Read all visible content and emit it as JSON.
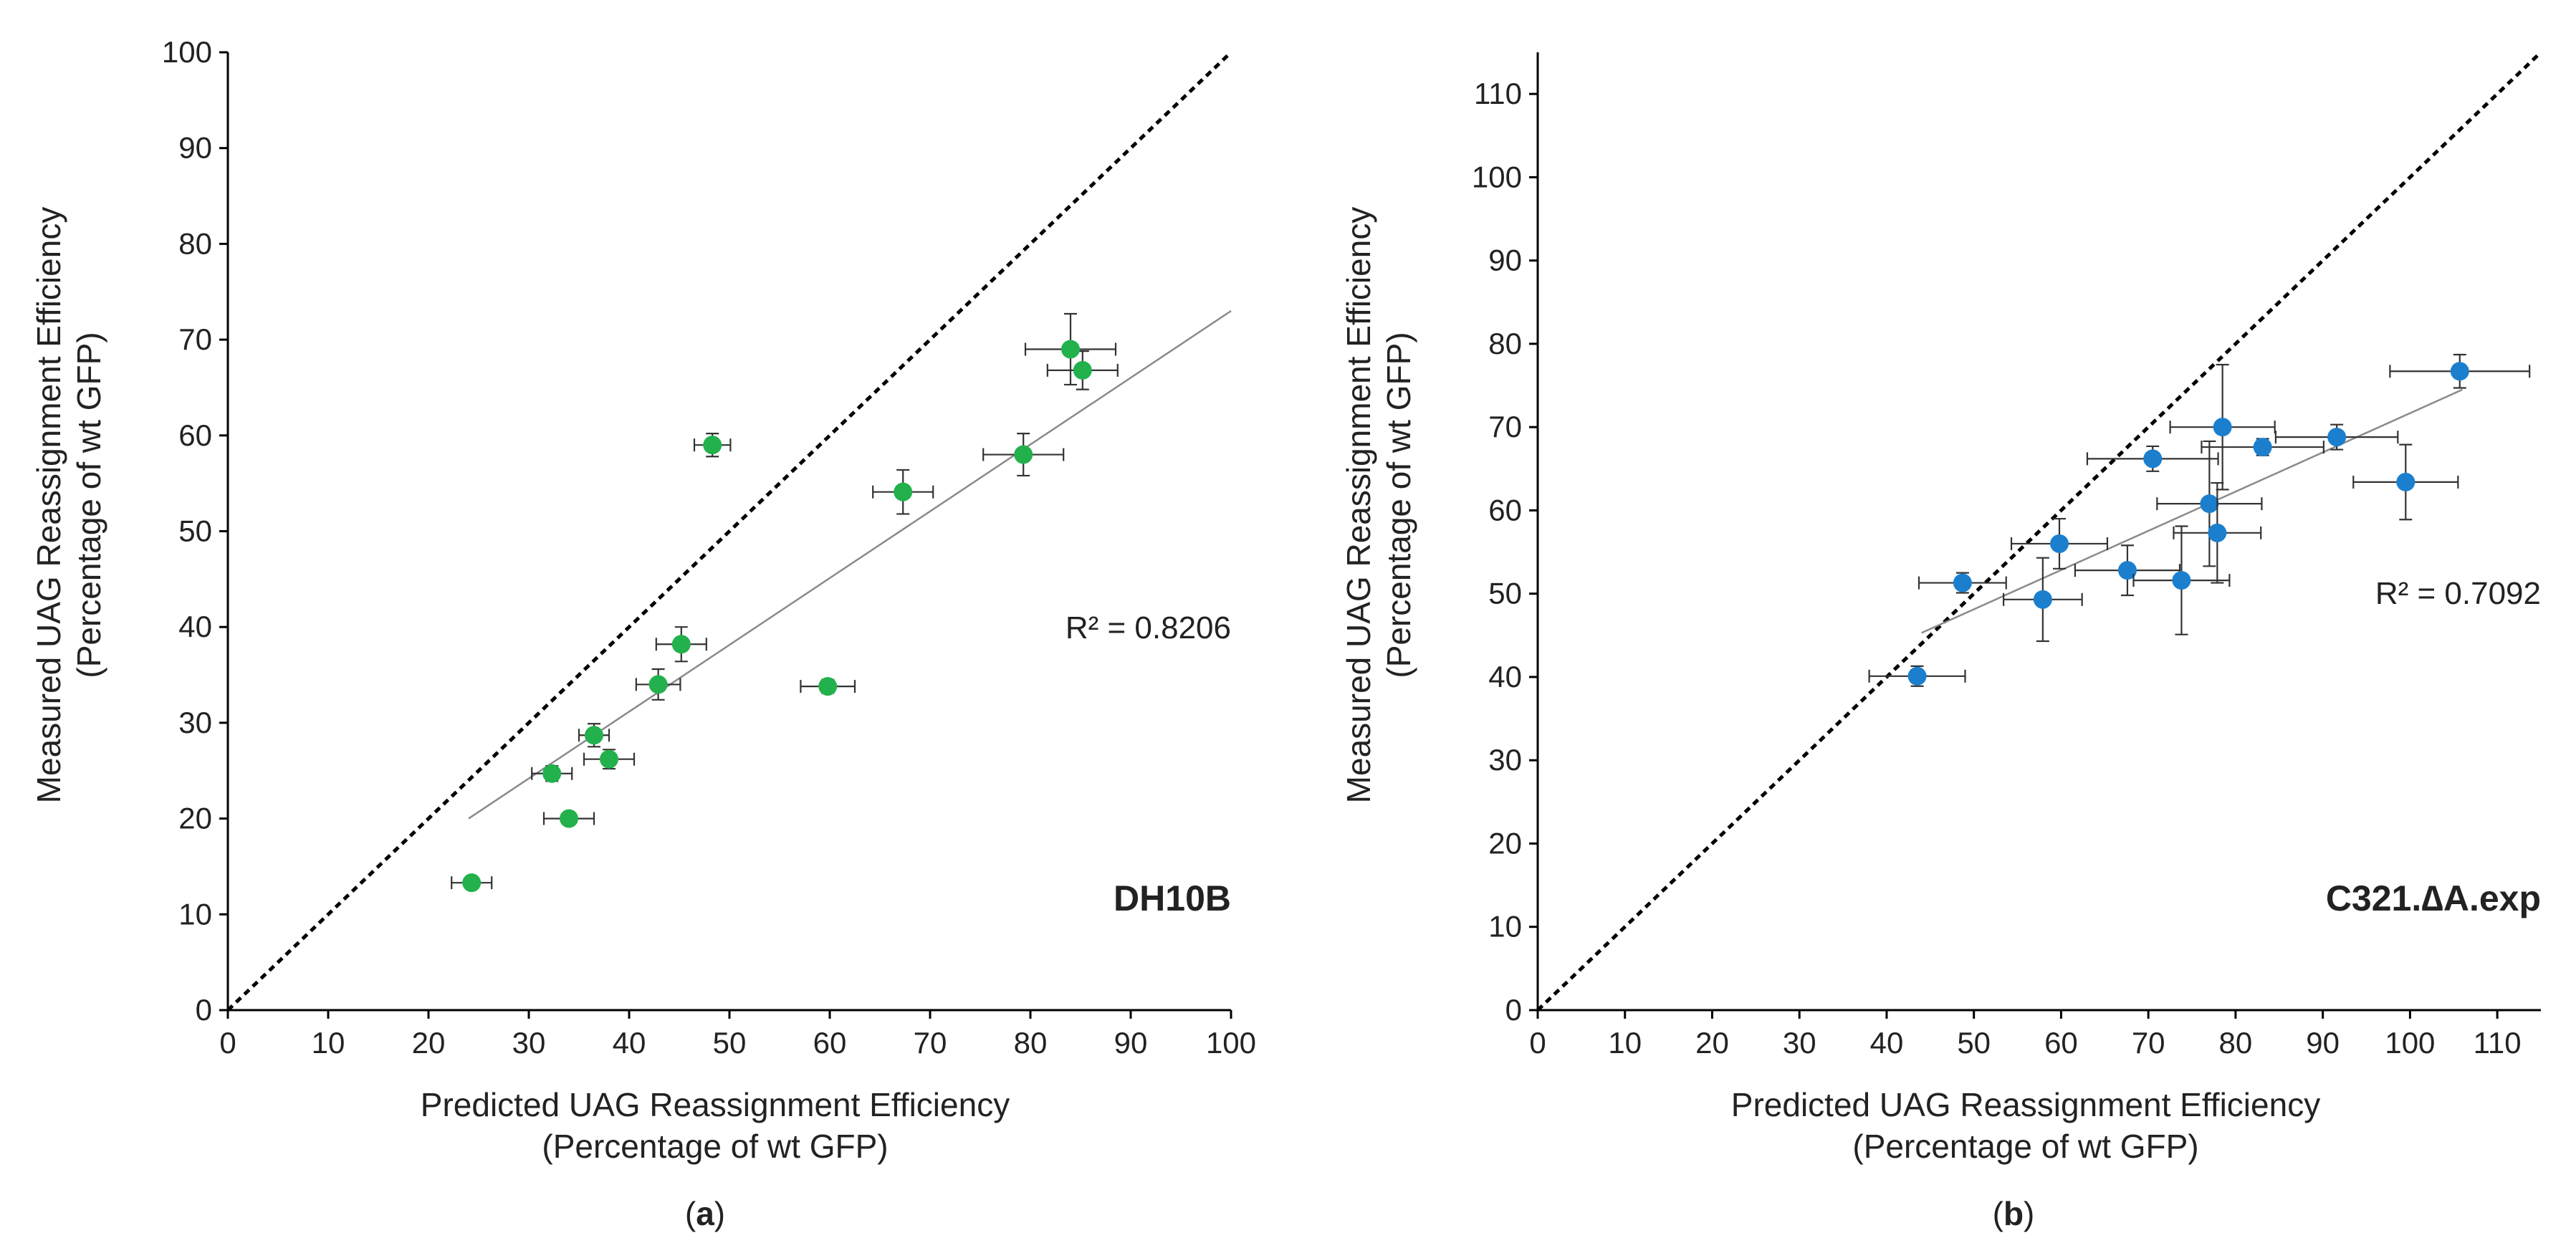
{
  "chart_data": [
    {
      "id": "a",
      "type": "scatter",
      "caption": "a",
      "strain_label": "DH10B",
      "xlabel": "Predicted UAG Reassignment Efficiency",
      "xlabel_sub": "(Percentage of wt GFP)",
      "ylabel": "Measured UAG Reassignment Efficiency",
      "ylabel_sub": "(Percentage of wt GFP)",
      "xlim": [
        0,
        100
      ],
      "ylim": [
        0,
        100
      ],
      "xticks": [
        0,
        10,
        20,
        30,
        40,
        50,
        60,
        70,
        80,
        90,
        100
      ],
      "yticks": [
        0,
        10,
        20,
        30,
        40,
        50,
        60,
        70,
        80,
        90,
        100
      ],
      "marker_color": "#22b14c",
      "r_squared_label": "R² = 0.8206",
      "identity_line": {
        "x": [
          0,
          100
        ],
        "y": [
          0,
          100
        ],
        "style": "dashed"
      },
      "trendline": {
        "x": [
          24,
          100
        ],
        "y": [
          20,
          73
        ]
      },
      "points": [
        {
          "x": 24.3,
          "y": 13.3,
          "xerr": 2.0,
          "yerr": 0.6
        },
        {
          "x": 34.0,
          "y": 20.0,
          "xerr": 2.5,
          "yerr": 0.5
        },
        {
          "x": 32.3,
          "y": 24.7,
          "xerr": 2.0,
          "yerr": 0.8
        },
        {
          "x": 38.0,
          "y": 26.2,
          "xerr": 2.5,
          "yerr": 1.0
        },
        {
          "x": 36.5,
          "y": 28.7,
          "xerr": 1.5,
          "yerr": 1.2
        },
        {
          "x": 42.9,
          "y": 34.0,
          "xerr": 2.2,
          "yerr": 1.6
        },
        {
          "x": 59.8,
          "y": 33.8,
          "xerr": 2.7,
          "yerr": 0.7
        },
        {
          "x": 45.2,
          "y": 38.2,
          "xerr": 2.5,
          "yerr": 1.8
        },
        {
          "x": 67.3,
          "y": 54.1,
          "xerr": 3.0,
          "yerr": 2.3
        },
        {
          "x": 79.3,
          "y": 58.0,
          "xerr": 4.0,
          "yerr": 2.2
        },
        {
          "x": 48.3,
          "y": 59.0,
          "xerr": 1.8,
          "yerr": 1.2
        },
        {
          "x": 85.2,
          "y": 66.8,
          "xerr": 3.5,
          "yerr": 2.0
        },
        {
          "x": 84.0,
          "y": 69.0,
          "xerr": 4.5,
          "yerr": 3.7
        }
      ]
    },
    {
      "id": "b",
      "type": "scatter",
      "caption": "b",
      "strain_label": "C321.∆A.exp",
      "xlabel": "Predicted UAG Reassignment Efficiency",
      "xlabel_sub": "(Percentage of wt GFP)",
      "ylabel": "Measured UAG Reassignment Efficiency",
      "ylabel_sub": "(Percentage of wt GFP)",
      "xlim": [
        0,
        115
      ],
      "ylim": [
        0,
        115
      ],
      "xticks": [
        0,
        10,
        20,
        30,
        40,
        50,
        60,
        70,
        80,
        90,
        100,
        110
      ],
      "yticks": [
        0,
        10,
        20,
        30,
        40,
        50,
        60,
        70,
        80,
        90,
        100,
        110
      ],
      "marker_color": "#1b7fce",
      "r_squared_label": "R² = 0.7092",
      "identity_line": {
        "x": [
          0,
          115
        ],
        "y": [
          0,
          115
        ],
        "style": "dashed"
      },
      "trendline": {
        "x": [
          44,
          106
        ],
        "y": [
          45.3,
          74.5
        ]
      },
      "points": [
        {
          "x": 43.5,
          "y": 40.1,
          "xerr": 5.5,
          "yerr": 1.2
        },
        {
          "x": 48.7,
          "y": 51.3,
          "xerr": 5.0,
          "yerr": 1.2
        },
        {
          "x": 57.9,
          "y": 49.3,
          "xerr": 4.5,
          "yerr": 5.0
        },
        {
          "x": 59.8,
          "y": 56.0,
          "xerr": 5.5,
          "yerr": 3.0
        },
        {
          "x": 67.6,
          "y": 52.8,
          "xerr": 6.0,
          "yerr": 3.0
        },
        {
          "x": 73.8,
          "y": 51.6,
          "xerr": 5.5,
          "yerr": 6.5
        },
        {
          "x": 70.5,
          "y": 66.2,
          "xerr": 7.5,
          "yerr": 1.5
        },
        {
          "x": 77.0,
          "y": 60.8,
          "xerr": 6.0,
          "yerr": 7.5
        },
        {
          "x": 77.9,
          "y": 57.3,
          "xerr": 5.0,
          "yerr": 6.0
        },
        {
          "x": 78.5,
          "y": 70.0,
          "xerr": 6.0,
          "yerr": 7.5
        },
        {
          "x": 83.1,
          "y": 67.6,
          "xerr": 7.0,
          "yerr": 1.0
        },
        {
          "x": 91.6,
          "y": 68.8,
          "xerr": 7.0,
          "yerr": 1.5
        },
        {
          "x": 99.5,
          "y": 63.4,
          "xerr": 6.0,
          "yerr": 4.5
        },
        {
          "x": 105.7,
          "y": 76.7,
          "xerr": 8.0,
          "yerr": 2.0
        }
      ]
    }
  ]
}
